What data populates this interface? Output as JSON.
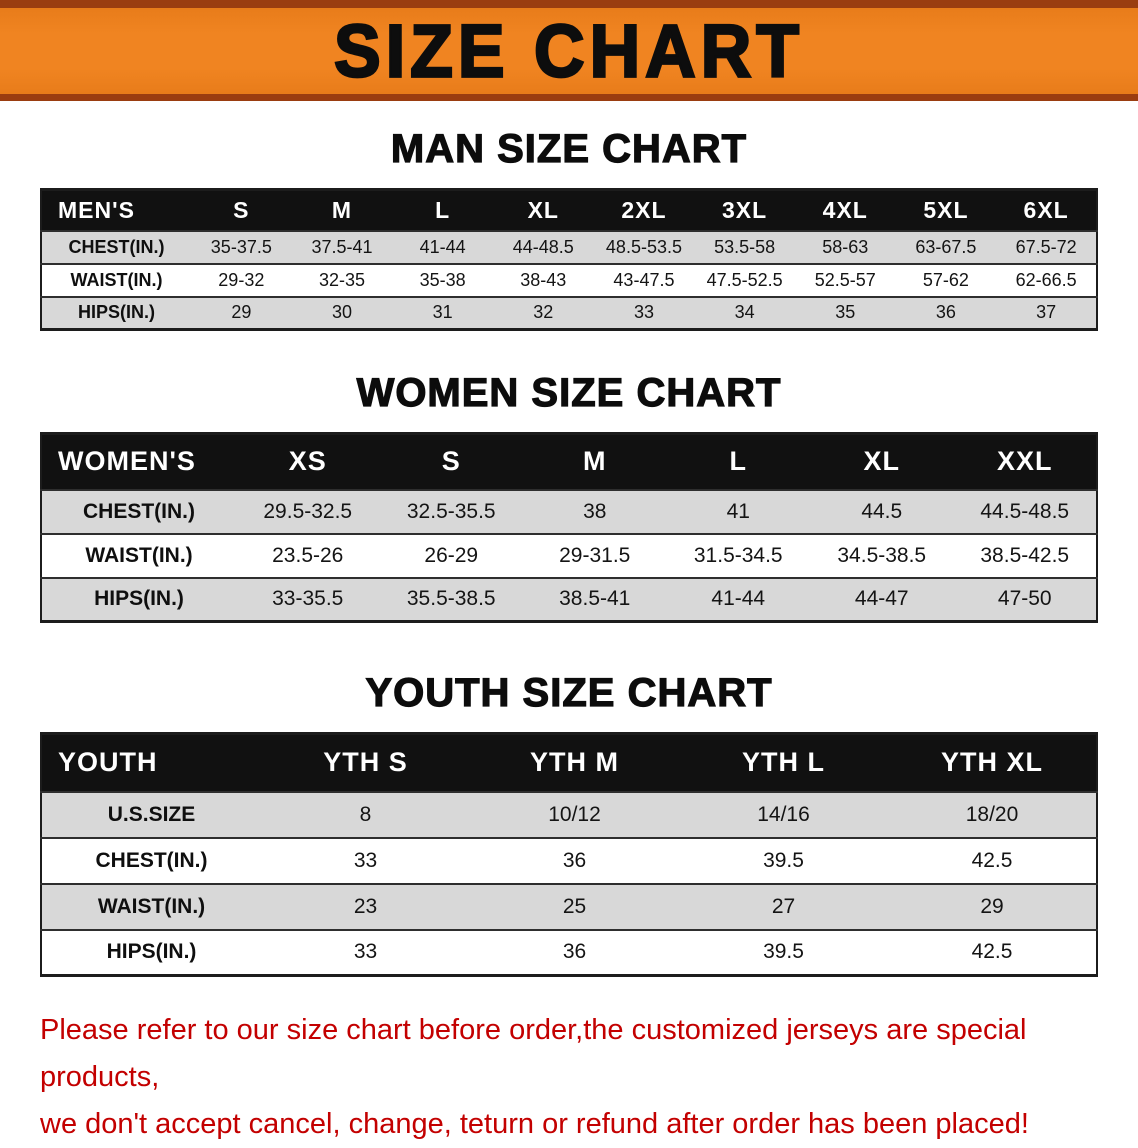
{
  "title": "SIZE CHART",
  "colors": {
    "banner_orange": "#F08421",
    "banner_edge": "#9A3D10",
    "table_header_bg": "#111111",
    "row_shade": "#D8D8D8",
    "note_red": "#C30000"
  },
  "sections": [
    {
      "heading": "MAN SIZE CHART",
      "table": {
        "header": [
          "MEN'S",
          "S",
          "M",
          "L",
          "XL",
          "2XL",
          "3XL",
          "4XL",
          "5XL",
          "6XL"
        ],
        "rows": [
          [
            "CHEST(IN.)",
            "35-37.5",
            "37.5-41",
            "41-44",
            "44-48.5",
            "48.5-53.5",
            "53.5-58",
            "58-63",
            "63-67.5",
            "67.5-72"
          ],
          [
            "WAIST(IN.)",
            "29-32",
            "32-35",
            "35-38",
            "38-43",
            "43-47.5",
            "47.5-52.5",
            "52.5-57",
            "57-62",
            "62-66.5"
          ],
          [
            "HIPS(IN.)",
            "29",
            "30",
            "31",
            "32",
            "33",
            "34",
            "35",
            "36",
            "37"
          ]
        ]
      }
    },
    {
      "heading": "WOMEN SIZE CHART",
      "table": {
        "header": [
          "WOMEN'S",
          "XS",
          "S",
          "M",
          "L",
          "XL",
          "XXL"
        ],
        "rows": [
          [
            "CHEST(IN.)",
            "29.5-32.5",
            "32.5-35.5",
            "38",
            "41",
            "44.5",
            "44.5-48.5"
          ],
          [
            "WAIST(IN.)",
            "23.5-26",
            "26-29",
            "29-31.5",
            "31.5-34.5",
            "34.5-38.5",
            "38.5-42.5"
          ],
          [
            "HIPS(IN.)",
            "33-35.5",
            "35.5-38.5",
            "38.5-41",
            "41-44",
            "44-47",
            "47-50"
          ]
        ]
      }
    },
    {
      "heading": "YOUTH SIZE CHART",
      "table": {
        "header": [
          "YOUTH",
          "YTH S",
          "YTH M",
          "YTH L",
          "YTH XL"
        ],
        "rows": [
          [
            "U.S.SIZE",
            "8",
            "10/12",
            "14/16",
            "18/20"
          ],
          [
            "CHEST(IN.)",
            "33",
            "36",
            "39.5",
            "42.5"
          ],
          [
            "WAIST(IN.)",
            "23",
            "25",
            "27",
            "29"
          ],
          [
            "HIPS(IN.)",
            "33",
            "36",
            "39.5",
            "42.5"
          ]
        ]
      }
    }
  ],
  "note": {
    "line1": "Please refer to our size chart before order,the customized jerseys are special products,",
    "line2": "we don't accept cancel, change, teturn or refund after order has been placed!"
  }
}
